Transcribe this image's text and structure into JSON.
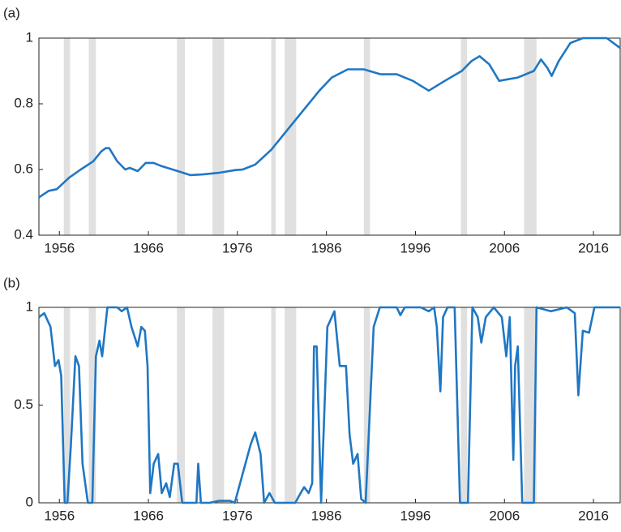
{
  "chart_data": [
    {
      "type": "line",
      "label": "(a)",
      "color": "#1f77c4",
      "shade_color": "#e0e0e0",
      "xlim": [
        1953.7,
        2019
      ],
      "xticks": [
        1956,
        1966,
        1976,
        1986,
        1996,
        2006,
        2016
      ],
      "ylim": [
        0.4,
        1
      ],
      "yticks": [
        0.4,
        0.6,
        0.8,
        1
      ],
      "shaded_regions": [
        [
          1956.5,
          1957.2
        ],
        [
          1959.3,
          1960.1
        ],
        [
          1969.2,
          1970.1
        ],
        [
          1973.2,
          1974.5
        ],
        [
          1979.8,
          1980.3
        ],
        [
          1981.3,
          1982.6
        ],
        [
          1990.2,
          1990.9
        ],
        [
          2001.1,
          2001.8
        ],
        [
          2008.2,
          2009.6
        ]
      ],
      "x": [
        1953.7,
        1954.8,
        1955.7,
        1957.1,
        1958.4,
        1959.8,
        1960.7,
        1961.2,
        1961.6,
        1962.5,
        1963.4,
        1963.9,
        1964.8,
        1965.7,
        1966.6,
        1967.5,
        1969.3,
        1970.7,
        1972.1,
        1973.9,
        1975.7,
        1976.6,
        1978,
        1979.8,
        1981.6,
        1983.4,
        1985.2,
        1986.6,
        1988.4,
        1990.2,
        1992.1,
        1993.9,
        1995.7,
        1997.5,
        1999.3,
        2001.2,
        2002.3,
        2003.2,
        2004.3,
        2005.4,
        2007.5,
        2009.3,
        2010.1,
        2010.8,
        2011.3,
        2012.1,
        2013.4,
        2014.8,
        2017.5,
        2019
      ],
      "values": [
        0.515,
        0.535,
        0.54,
        0.575,
        0.6,
        0.625,
        0.655,
        0.665,
        0.665,
        0.625,
        0.6,
        0.605,
        0.595,
        0.62,
        0.62,
        0.61,
        0.595,
        0.583,
        0.585,
        0.59,
        0.598,
        0.6,
        0.615,
        0.66,
        0.72,
        0.78,
        0.84,
        0.88,
        0.905,
        0.905,
        0.89,
        0.89,
        0.87,
        0.84,
        0.87,
        0.9,
        0.93,
        0.945,
        0.92,
        0.87,
        0.88,
        0.9,
        0.935,
        0.91,
        0.885,
        0.93,
        0.985,
        1.0,
        1.0,
        0.97
      ]
    },
    {
      "type": "line",
      "label": "(b)",
      "color": "#1f77c4",
      "shade_color": "#e0e0e0",
      "xlim": [
        1953.7,
        2019
      ],
      "xticks": [
        1956,
        1966,
        1976,
        1986,
        1996,
        2006,
        2016
      ],
      "ylim": [
        0,
        1
      ],
      "yticks": [
        0,
        0.5,
        1
      ],
      "shaded_regions": [
        [
          1956.5,
          1957.2
        ],
        [
          1959.3,
          1960.1
        ],
        [
          1969.2,
          1970.1
        ],
        [
          1973.2,
          1974.5
        ],
        [
          1979.8,
          1980.3
        ],
        [
          1981.3,
          1982.6
        ],
        [
          1990.2,
          1990.9
        ],
        [
          2001.1,
          2001.8
        ],
        [
          2008.2,
          2009.6
        ]
      ],
      "x": [
        1953.7,
        1954.3,
        1955,
        1955.5,
        1955.9,
        1956.2,
        1956.6,
        1956.9,
        1957.3,
        1957.8,
        1958.2,
        1958.6,
        1959.2,
        1959.7,
        1960.1,
        1960.5,
        1960.8,
        1961.4,
        1962.5,
        1963,
        1963.6,
        1964.1,
        1964.8,
        1965.2,
        1965.6,
        1965.9,
        1966.2,
        1966.6,
        1967.1,
        1967.5,
        1968,
        1968.4,
        1968.9,
        1969.3,
        1969.8,
        1970.7,
        1971.4,
        1971.6,
        1971.9,
        1972.9,
        1973.9,
        1975.2,
        1975.7,
        1976.9,
        1977.5,
        1978,
        1978.6,
        1979,
        1979.6,
        1980.2,
        1982.5,
        1983.1,
        1983.5,
        1984,
        1984.4,
        1984.6,
        1984.9,
        1985.4,
        1986.1,
        1986.9,
        1987.5,
        1988.2,
        1988.6,
        1989,
        1989.5,
        1989.9,
        1990.4,
        1990.9,
        1991.3,
        1992,
        1993.9,
        1994.3,
        1994.8,
        1996.6,
        1997.5,
        1998.1,
        1998.4,
        1998.8,
        1999.1,
        1999.6,
        2000.4,
        2001,
        2001.9,
        2002.4,
        2003,
        2003.4,
        2003.9,
        2004.8,
        2005.7,
        2006.2,
        2006.6,
        2007,
        2007.2,
        2007.5,
        2008,
        2009.3,
        2009.6,
        2011.2,
        2013,
        2013.9,
        2014.3,
        2014.8,
        2015.5,
        2016.1,
        2019
      ],
      "values": [
        0.95,
        0.97,
        0.9,
        0.7,
        0.73,
        0.65,
        0.0,
        0.0,
        0.3,
        0.75,
        0.7,
        0.2,
        0.0,
        0.0,
        0.75,
        0.83,
        0.75,
        1.0,
        1.0,
        0.98,
        1.0,
        0.9,
        0.8,
        0.9,
        0.88,
        0.7,
        0.05,
        0.2,
        0.25,
        0.05,
        0.1,
        0.03,
        0.2,
        0.2,
        0.0,
        0.0,
        0.0,
        0.2,
        0.0,
        0.0,
        0.01,
        0.01,
        0.0,
        0.2,
        0.3,
        0.36,
        0.25,
        0.0,
        0.05,
        0.0,
        0.0,
        0.05,
        0.08,
        0.05,
        0.1,
        0.8,
        0.8,
        0.0,
        0.9,
        0.98,
        0.7,
        0.7,
        0.35,
        0.2,
        0.25,
        0.02,
        0.0,
        0.5,
        0.9,
        1.0,
        1.0,
        0.96,
        1.0,
        1.0,
        0.98,
        1.0,
        0.9,
        0.57,
        0.95,
        1.0,
        1.0,
        0.0,
        0.0,
        1.0,
        0.95,
        0.82,
        0.95,
        1.0,
        0.95,
        0.75,
        0.95,
        0.22,
        0.7,
        0.8,
        0.0,
        0.0,
        1.0,
        0.98,
        1.0,
        0.97,
        0.55,
        0.88,
        0.87,
        1.0,
        1.0
      ]
    }
  ]
}
